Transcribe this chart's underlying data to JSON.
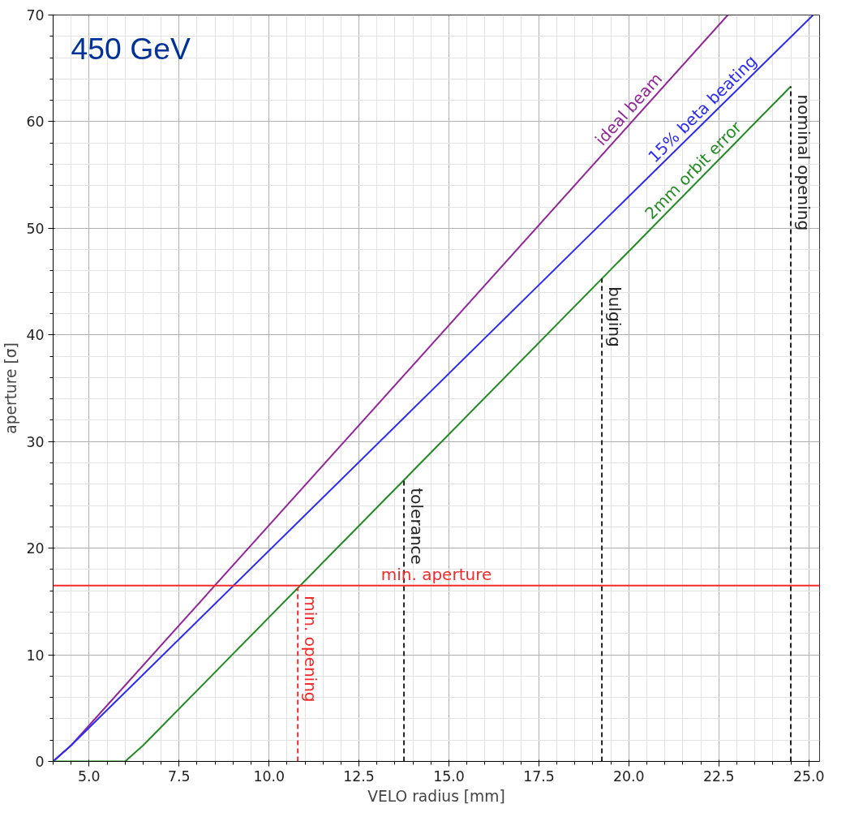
{
  "chart_data": {
    "type": "line",
    "title": "450 GeV",
    "xlabel": "VELO radius [mm]",
    "ylabel": "aperture [σ]",
    "xlim": [
      4.0,
      25.3
    ],
    "ylim": [
      0,
      70
    ],
    "xticks": [
      {
        "value": 5,
        "label": "5.0"
      },
      {
        "value": 7.5,
        "label": "7.5"
      },
      {
        "value": 10,
        "label": "10.0"
      },
      {
        "value": 12.5,
        "label": "12.5"
      },
      {
        "value": 15,
        "label": "15.0"
      },
      {
        "value": 17.5,
        "label": "17.5"
      },
      {
        "value": 20,
        "label": "20.0"
      },
      {
        "value": 22.5,
        "label": "22.5"
      },
      {
        "value": 25,
        "label": "25.0"
      }
    ],
    "yticks": [
      0,
      10,
      20,
      30,
      40,
      50,
      60,
      70
    ],
    "grid": true,
    "marker": "none",
    "series": [
      {
        "name": "ideal beam",
        "color": "#93279a",
        "x": [
          4.0,
          4.5,
          22.75
        ],
        "values": [
          0,
          1.5,
          70
        ],
        "line_style": "solid"
      },
      {
        "name": "15% beta beating",
        "color": "#2b2bf5",
        "x": [
          4.0,
          4.5,
          25.12
        ],
        "values": [
          0,
          1.5,
          70
        ],
        "line_style": "solid"
      },
      {
        "name": "2mm orbit error",
        "color": "#238b23",
        "x": [
          4.0,
          6.0,
          6.5,
          24.5
        ],
        "values": [
          0,
          0,
          1.5,
          63.3
        ],
        "line_style": "solid"
      },
      {
        "name": "min. opening",
        "color": "#f52a2a",
        "x": [
          10.8,
          10.8
        ],
        "values": [
          0,
          16.3
        ],
        "line_style": "dashed"
      },
      {
        "name": "tolerance",
        "color": "#222222",
        "x": [
          13.75,
          13.75
        ],
        "values": [
          0,
          26.4
        ],
        "line_style": "dashed"
      },
      {
        "name": "bulging",
        "color": "#222222",
        "x": [
          19.25,
          19.25
        ],
        "values": [
          0,
          45.3
        ],
        "line_style": "dashed"
      },
      {
        "name": "nominal opening",
        "color": "#222222",
        "x": [
          24.5,
          24.5
        ],
        "values": [
          0,
          63.3
        ],
        "line_style": "dashed"
      }
    ],
    "ref_lines": [
      {
        "axis": "y",
        "value": 16.5,
        "label": "min. aperture",
        "color": "#f52a2a",
        "line_style": "solid"
      }
    ]
  }
}
